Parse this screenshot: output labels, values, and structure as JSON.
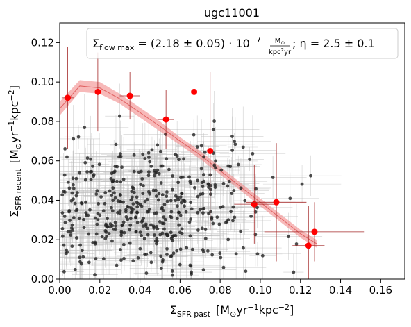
{
  "chart_data": {
    "type": "scatter",
    "title": "ugc11001",
    "xlabel": {
      "main": "Σ",
      "sub": "SFR past",
      "units": "[M",
      "units_sub": "⊙",
      "units_rest": "yr",
      "sup1": "−1",
      "units_rest2": "kpc",
      "sup2": "−2",
      "close": "]"
    },
    "ylabel": {
      "main": "Σ",
      "sub": "SFR recent",
      "units": "[M",
      "units_sub": "⊙",
      "units_rest": "yr",
      "sup1": "−1",
      "units_rest2": "kpc",
      "sup2": "−2",
      "close": "]"
    },
    "xlim": [
      0.0,
      0.172
    ],
    "ylim": [
      0.0,
      0.13
    ],
    "xticks": [
      "0.00",
      "0.02",
      "0.04",
      "0.06",
      "0.08",
      "0.10",
      "0.12",
      "0.14",
      "0.16"
    ],
    "xtick_values": [
      0.0,
      0.02,
      0.04,
      0.06,
      0.08,
      0.1,
      0.12,
      0.14,
      0.16
    ],
    "yticks": [
      "0.00",
      "0.02",
      "0.04",
      "0.06",
      "0.08",
      "0.10",
      "0.12"
    ],
    "ytick_values": [
      0.0,
      0.02,
      0.04,
      0.06,
      0.08,
      0.1,
      0.12
    ],
    "annotation": {
      "sigma": "Σ",
      "sub": "flow max",
      "eq_start": " = (2.18 ± 0.05) · 10",
      "exp": "−7",
      "frac_num": "M",
      "frac_num_sub": "⊙",
      "frac_den": "kpc",
      "frac_den_sup": "2",
      "frac_den_rest": "yr",
      "eq_end": "; η = 2.5 ± 0.1"
    },
    "colors": {
      "points": "#000000",
      "binned": "#ff0000",
      "binned_err": "#a52a2a",
      "model": "#f08080",
      "grid_err": "#bbbbbb"
    },
    "model_band": {
      "x": [
        0.0,
        0.01,
        0.02,
        0.03,
        0.04,
        0.05,
        0.06,
        0.07,
        0.08,
        0.09,
        0.1,
        0.11,
        0.12,
        0.128
      ],
      "y_low": [
        0.083,
        0.095,
        0.094,
        0.089,
        0.082,
        0.075,
        0.068,
        0.061,
        0.053,
        0.045,
        0.037,
        0.029,
        0.021,
        0.016
      ],
      "y_high": [
        0.09,
        0.101,
        0.1,
        0.094,
        0.087,
        0.08,
        0.072,
        0.065,
        0.057,
        0.049,
        0.041,
        0.033,
        0.025,
        0.02
      ]
    },
    "binned_points": [
      {
        "x": 0.004,
        "y": 0.092,
        "xerr": 0.003,
        "yerr": 0.026
      },
      {
        "x": 0.019,
        "y": 0.095,
        "xerr": 0.003,
        "yerr": 0.02
      },
      {
        "x": 0.035,
        "y": 0.093,
        "xerr": 0.005,
        "yerr": 0.012
      },
      {
        "x": 0.053,
        "y": 0.081,
        "xerr": 0.004,
        "yerr": 0.015
      },
      {
        "x": 0.067,
        "y": 0.095,
        "xerr": 0.023,
        "yerr": 0.017
      },
      {
        "x": 0.075,
        "y": 0.065,
        "xerr": 0.02,
        "yerr": 0.04
      },
      {
        "x": 0.097,
        "y": 0.038,
        "xerr": 0.01,
        "yerr": 0.02
      },
      {
        "x": 0.108,
        "y": 0.039,
        "xerr": 0.015,
        "yerr": 0.03
      },
      {
        "x": 0.124,
        "y": 0.017,
        "xerr": 0.008,
        "yerr": 0.02
      },
      {
        "x": 0.127,
        "y": 0.024,
        "xerr": 0.025,
        "yerr": 0.015
      }
    ],
    "scatter_generator": {
      "count": 460,
      "x_center": 0.045,
      "x_spread": 0.028,
      "y_center": 0.036,
      "y_spread": 0.017,
      "seed": 11001
    }
  }
}
